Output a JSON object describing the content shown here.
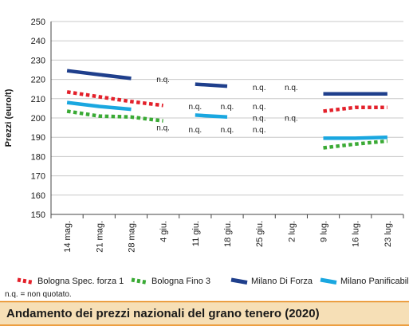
{
  "chart_data": {
    "type": "line",
    "title": "Andamento dei prezzi nazionali del grano tenero (2020)",
    "ylabel": "Prezzi (euro/t)",
    "xlabel": "",
    "ylim": [
      150,
      250
    ],
    "yticks": [
      150,
      160,
      170,
      180,
      190,
      200,
      210,
      220,
      230,
      240,
      250
    ],
    "categories": [
      "14 mag.",
      "21 mag.",
      "28 mag.",
      "4 giu.",
      "11 giu.",
      "18 giu.",
      "25 giu.",
      "2 lug.",
      "9 lug.",
      "16 lug.",
      "23 lug."
    ],
    "grid": "horizontal",
    "legend_position": "bottom",
    "series": [
      {
        "name": "Bologna Spec. forza 1",
        "color": "#e3202a",
        "style": "dotted",
        "values": [
          213.5,
          211,
          208.5,
          206.5,
          null,
          null,
          null,
          null,
          203.5,
          205.5,
          205.5
        ]
      },
      {
        "name": "Bologna Fino 3",
        "color": "#3aaa35",
        "style": "dotted",
        "values": [
          203.5,
          201,
          200.5,
          198.5,
          null,
          null,
          null,
          null,
          184.5,
          186.5,
          188
        ]
      },
      {
        "name": "Milano Di Forza",
        "color": "#1f3f8c",
        "style": "solid",
        "values": [
          224.5,
          222.5,
          220.5,
          null,
          217.5,
          216.5,
          null,
          null,
          212.5,
          212.5,
          212.5
        ]
      },
      {
        "name": "Milano Panificabile",
        "color": "#1aa7e0",
        "style": "solid",
        "values": [
          208,
          206,
          204.5,
          null,
          201.5,
          200.5,
          null,
          null,
          189.5,
          189.5,
          190
        ]
      }
    ],
    "annotations": [
      {
        "text": "n.q.",
        "x": "4 giu.",
        "y": 220
      },
      {
        "text": "n.q.",
        "x": "4 giu.",
        "y": 195
      },
      {
        "text": "n.q.",
        "x": "11 giu.",
        "y": 206
      },
      {
        "text": "n.q.",
        "x": "11 giu.",
        "y": 194
      },
      {
        "text": "n.q.",
        "x": "18 giu.",
        "y": 206
      },
      {
        "text": "n.q.",
        "x": "18 giu.",
        "y": 194
      },
      {
        "text": "n.q.",
        "x": "25 giu.",
        "y": 216
      },
      {
        "text": "n.q.",
        "x": "25 giu.",
        "y": 206
      },
      {
        "text": "n.q.",
        "x": "25 giu.",
        "y": 200
      },
      {
        "text": "n.q.",
        "x": "25 giu.",
        "y": 194
      },
      {
        "text": "n.q.",
        "x": "2 lug.",
        "y": 216
      },
      {
        "text": "n.q.",
        "x": "2 lug.",
        "y": 200
      }
    ],
    "note": "n.q. = non quotato."
  },
  "colors": {
    "title_band": "#f6dfb6",
    "title_rule": "#e88a1a",
    "axis": "#444444",
    "grid": "#c8c8c8"
  }
}
